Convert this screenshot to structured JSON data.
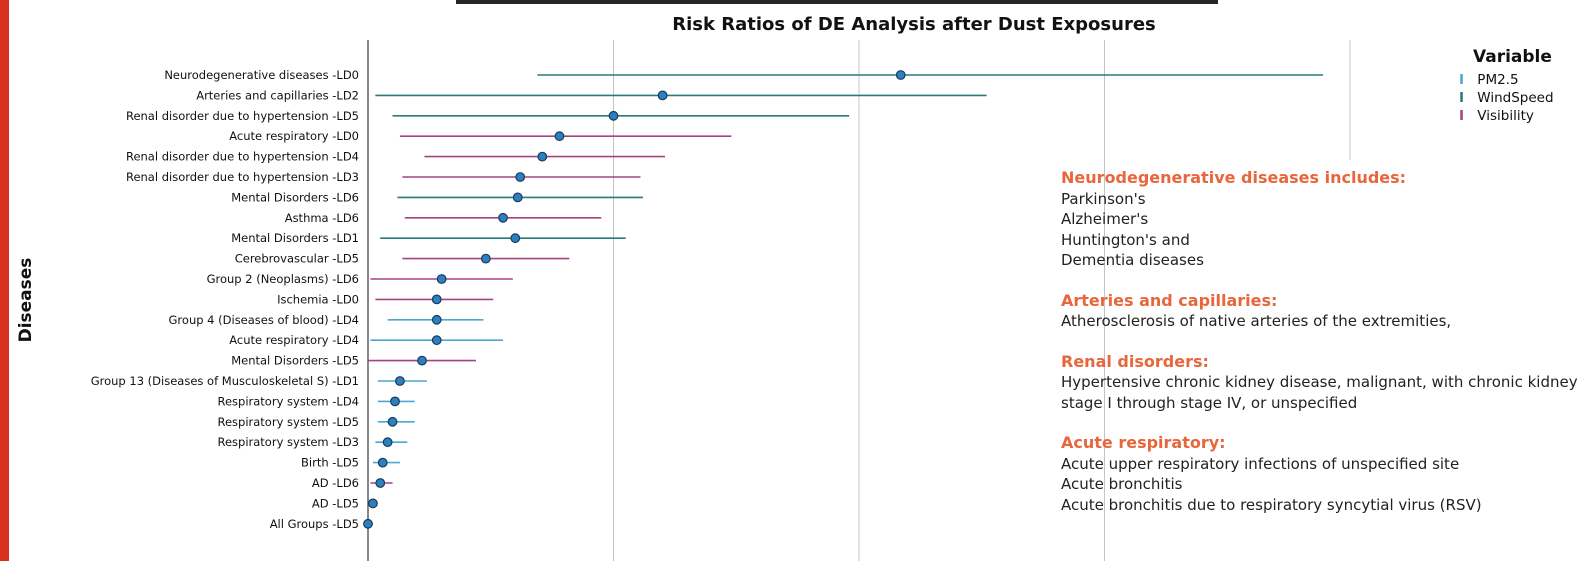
{
  "chart_data": {
    "type": "forest",
    "title": "Risk Ratios of DE Analysis after Dust Exposures",
    "ylabel": "Diseases",
    "xlim": [
      0.9,
      5.25
    ],
    "grid_x": [
      0.9,
      1.9,
      2.9,
      3.9,
      4.9
    ],
    "legend": {
      "title": "Variable",
      "position": "top-right",
      "entries": [
        {
          "name": "PM2.5",
          "color": "#4aa8d2"
        },
        {
          "name": "WindSpeed",
          "color": "#2a7a78"
        },
        {
          "name": "Visibility",
          "color": "#a64480"
        }
      ]
    },
    "rows": [
      {
        "label": "Neurodegenerative diseases  -LD0",
        "variable": "WindSpeed",
        "estimate": 3.07,
        "lower": 1.59,
        "upper": 4.79
      },
      {
        "label": "Arteries and capillaries -LD2",
        "variable": "WindSpeed",
        "estimate": 2.1,
        "lower": 0.93,
        "upper": 3.42
      },
      {
        "label": "Renal disorder due to hypertension -LD5",
        "variable": "WindSpeed",
        "estimate": 1.9,
        "lower": 1.0,
        "upper": 2.86
      },
      {
        "label": "Acute respiratory -LD0",
        "variable": "Visibility",
        "estimate": 1.68,
        "lower": 1.03,
        "upper": 2.38
      },
      {
        "label": "Renal disorder due to hypertension -LD4",
        "variable": "Visibility",
        "estimate": 1.61,
        "lower": 1.13,
        "upper": 2.11
      },
      {
        "label": "Renal disorder due to hypertension -LD3",
        "variable": "Visibility",
        "estimate": 1.52,
        "lower": 1.04,
        "upper": 2.01
      },
      {
        "label": "Mental Disorders -LD6",
        "variable": "WindSpeed",
        "estimate": 1.51,
        "lower": 1.02,
        "upper": 2.02
      },
      {
        "label": "Asthma -LD6",
        "variable": "Visibility",
        "estimate": 1.45,
        "lower": 1.05,
        "upper": 1.85
      },
      {
        "label": "Mental Disorders -LD1",
        "variable": "WindSpeed",
        "estimate": 1.5,
        "lower": 0.95,
        "upper": 1.95
      },
      {
        "label": "Cerebrovascular -LD5",
        "variable": "Visibility",
        "estimate": 1.38,
        "lower": 1.04,
        "upper": 1.72
      },
      {
        "label": "Group 2 (Neoplasms) -LD6",
        "variable": "Visibility",
        "estimate": 1.2,
        "lower": 0.91,
        "upper": 1.49
      },
      {
        "label": "Ischemia -LD0",
        "variable": "Visibility",
        "estimate": 1.18,
        "lower": 0.93,
        "upper": 1.41
      },
      {
        "label": "Group 4 (Diseases of blood) -LD4",
        "variable": "PM2.5",
        "estimate": 1.18,
        "lower": 0.98,
        "upper": 1.37
      },
      {
        "label": "Acute respiratory -LD4",
        "variable": "PM2.5",
        "estimate": 1.18,
        "lower": 0.91,
        "upper": 1.45
      },
      {
        "label": "Mental Disorders -LD5",
        "variable": "Visibility",
        "estimate": 1.12,
        "lower": 0.9,
        "upper": 1.34
      },
      {
        "label": "Group 13 (Diseases of Musculoskeletal S) -LD1",
        "variable": "PM2.5",
        "estimate": 1.03,
        "lower": 0.94,
        "upper": 1.14
      },
      {
        "label": "Respiratory system -LD4",
        "variable": "PM2.5",
        "estimate": 1.01,
        "lower": 0.94,
        "upper": 1.09
      },
      {
        "label": "Respiratory system -LD5",
        "variable": "PM2.5",
        "estimate": 1.0,
        "lower": 0.94,
        "upper": 1.09
      },
      {
        "label": "Respiratory system -LD3",
        "variable": "PM2.5",
        "estimate": 0.98,
        "lower": 0.93,
        "upper": 1.06
      },
      {
        "label": "Birth -LD5",
        "variable": "PM2.5",
        "estimate": 0.96,
        "lower": 0.92,
        "upper": 1.03
      },
      {
        "label": "AD -LD6",
        "variable": "Visibility",
        "estimate": 0.95,
        "lower": 0.91,
        "upper": 1.0
      },
      {
        "label": "AD -LD5",
        "variable": "PM2.5",
        "estimate": 0.92,
        "lower": 0.9,
        "upper": 0.94
      },
      {
        "label": "All Groups -LD5",
        "variable": "PM2.5",
        "estimate": 0.9,
        "lower": 0.89,
        "upper": 0.92
      }
    ]
  },
  "notes": [
    {
      "heading": "Neurodegenerative diseases includes:",
      "lines": [
        "Parkinson's",
        "Alzheimer's",
        "Huntington's and",
        "Dementia diseases"
      ]
    },
    {
      "heading": "Arteries and capillaries:",
      "lines": [
        "Atherosclerosis of native arteries of the extremities,"
      ]
    },
    {
      "heading": "Renal disorders:",
      "lines": [
        "Hypertensive chronic kidney disease, malignant, with chronic kidney disease",
        "stage I through stage IV, or unspecified"
      ]
    },
    {
      "heading": "Acute respiratory:",
      "lines": [
        "Acute upper respiratory infections of unspecified site",
        "Acute bronchitis",
        "Acute bronchitis due to respiratory syncytial virus (RSV)"
      ]
    }
  ]
}
